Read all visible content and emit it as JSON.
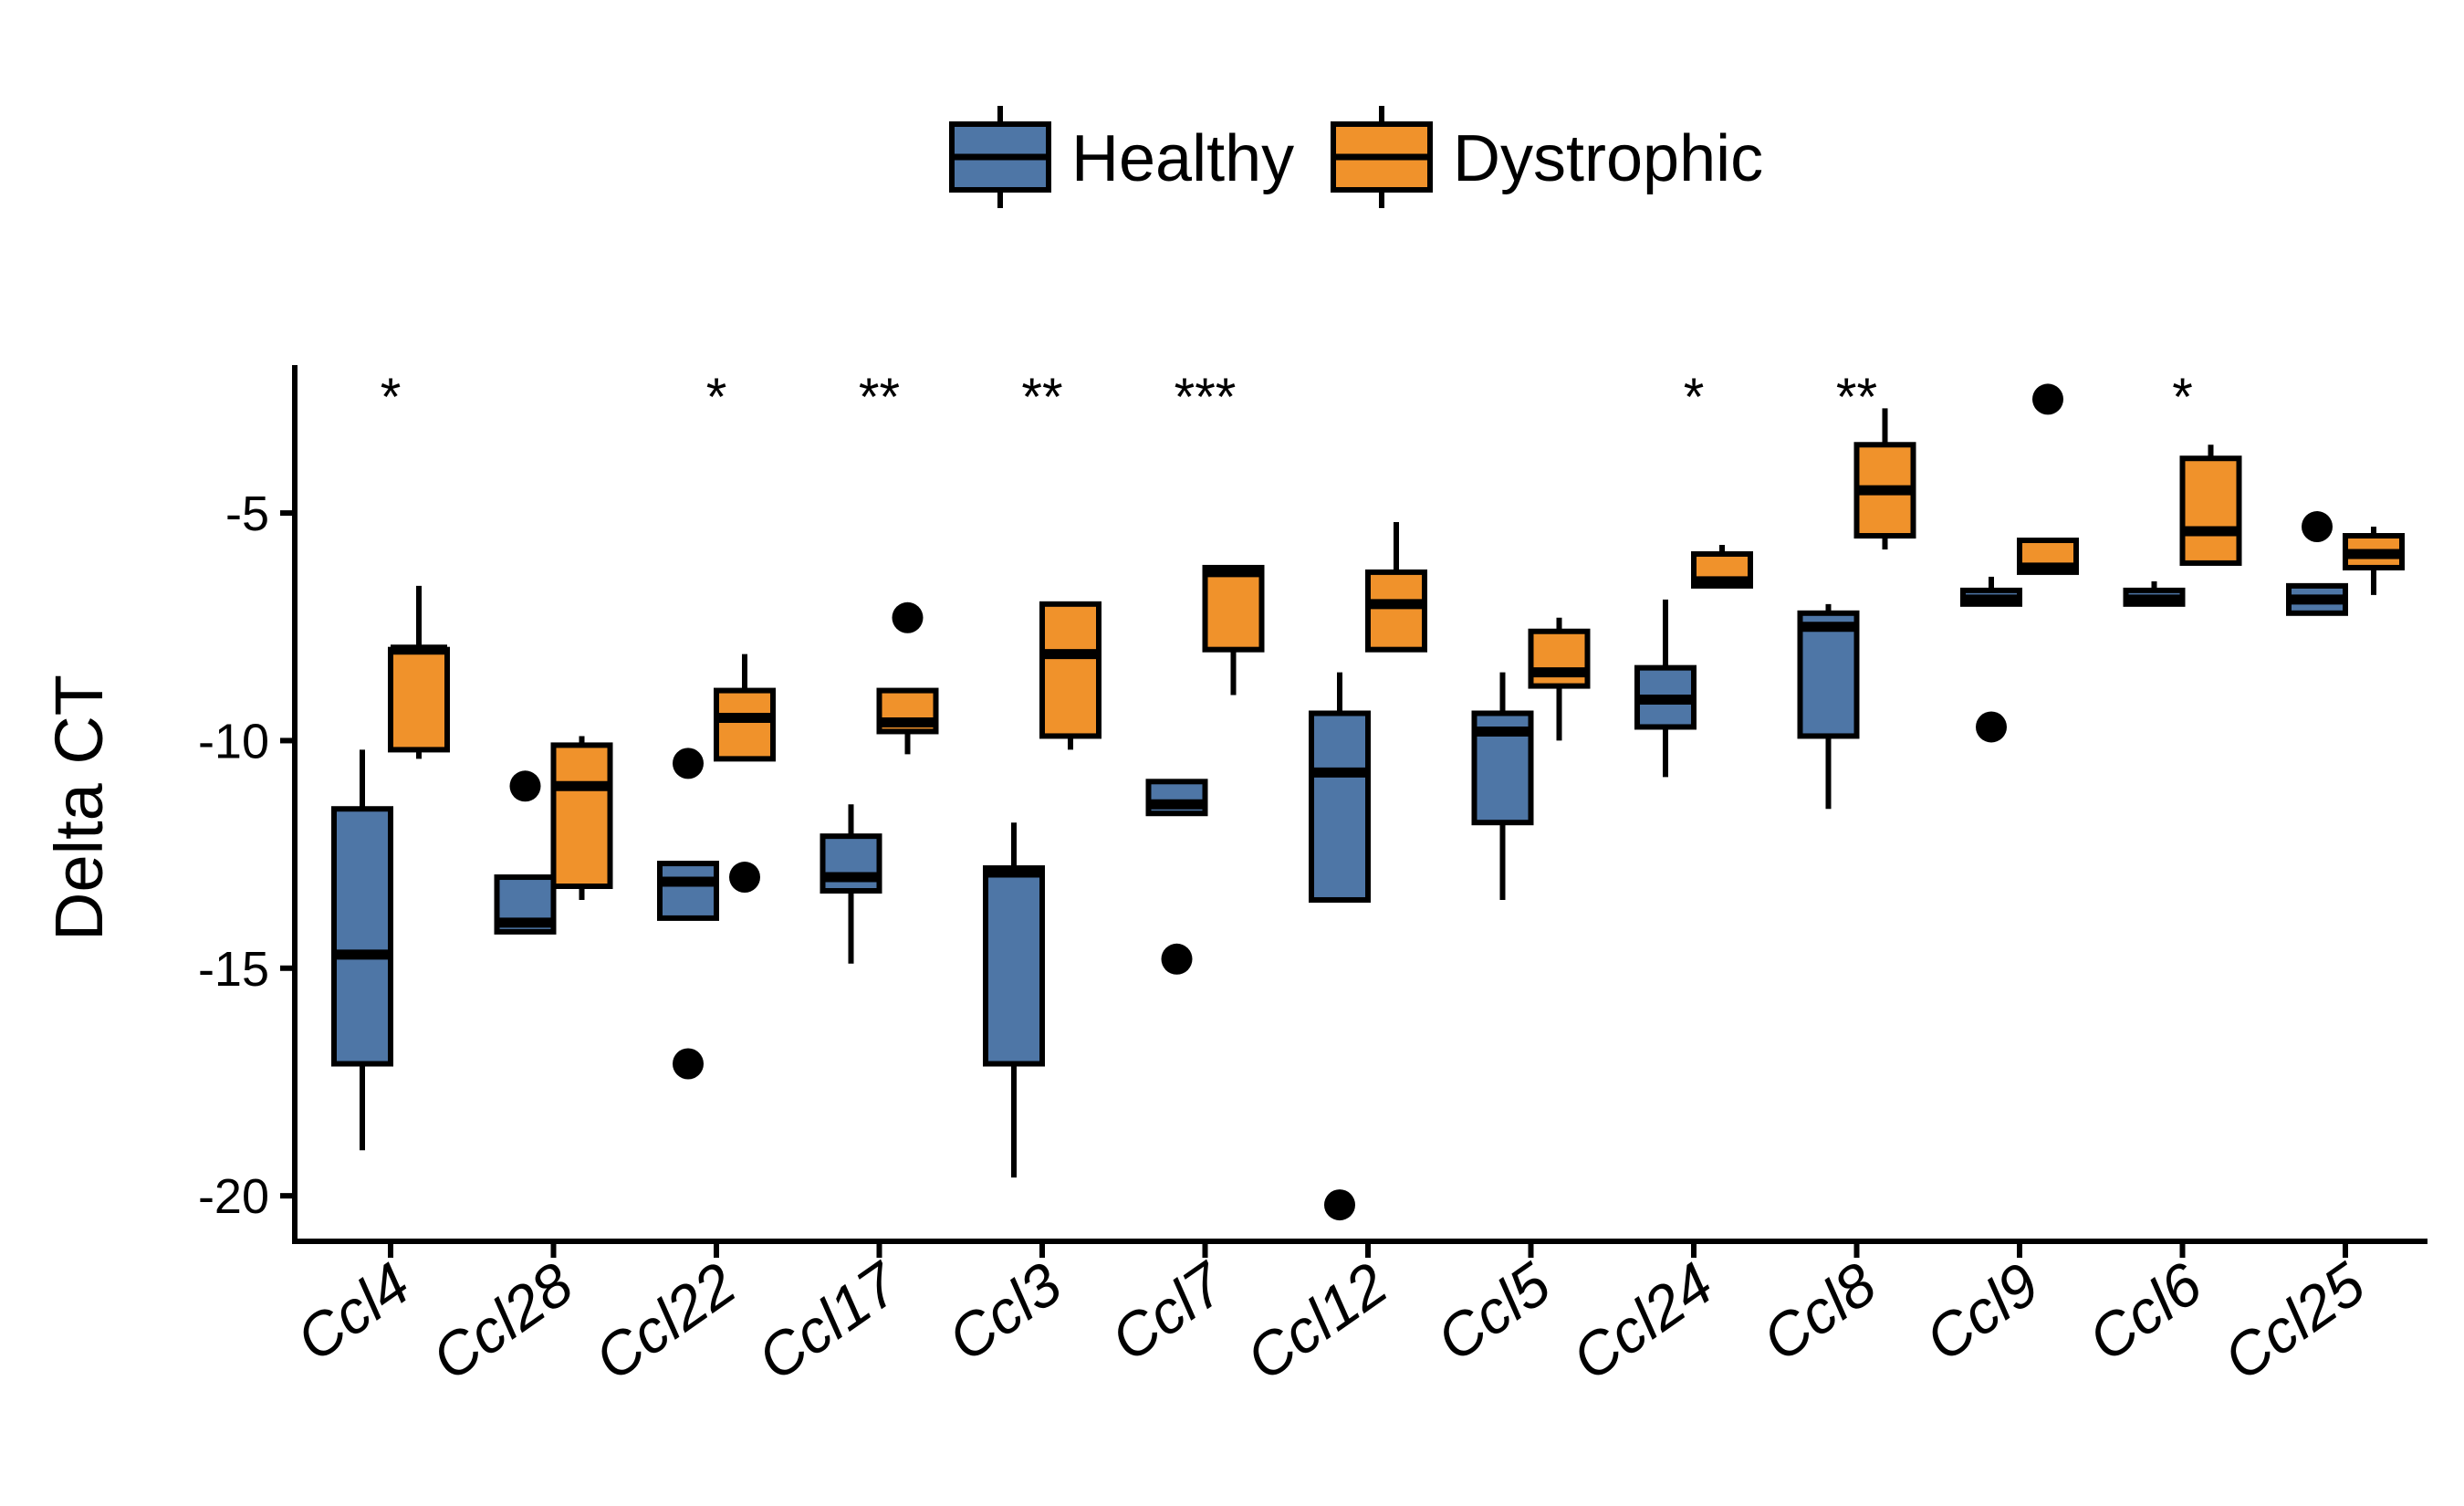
{
  "chart_data": {
    "type": "boxplot",
    "title": "",
    "xlabel": "",
    "ylabel": "Delta CT",
    "ylim": [
      -21,
      -1.75
    ],
    "yticks": [
      -5,
      -10,
      -15,
      -20
    ],
    "ytick_labels": [
      "-5",
      "-10",
      "-15",
      "-20"
    ],
    "grid": false,
    "legend_position": "top",
    "categories": [
      "Ccl4",
      "Ccl28",
      "Ccl22",
      "Ccl17",
      "Ccl3",
      "Ccl7",
      "Ccl12",
      "Ccl5",
      "Ccl24",
      "Ccl8",
      "Ccl9",
      "Ccl6",
      "Ccl25"
    ],
    "significance": [
      "*",
      "",
      "*",
      "**",
      "**",
      "***",
      "",
      "",
      "*",
      "**",
      "",
      "*",
      ""
    ],
    "series": [
      {
        "name": "Healthy",
        "color": "#4e76a6",
        "boxes": [
          {
            "whisker_low": -19.0,
            "q1": -17.1,
            "median": -14.7,
            "q3": -11.5,
            "whisker_high": -10.2,
            "outliers": []
          },
          {
            "whisker_low": -14.2,
            "q1": -14.2,
            "median": -14.0,
            "q3": -13.0,
            "whisker_high": -13.0,
            "outliers": [
              -11.0
            ]
          },
          {
            "whisker_low": -13.9,
            "q1": -13.9,
            "median": -13.1,
            "q3": -12.7,
            "whisker_high": -12.7,
            "outliers": [
              -10.5,
              -17.1
            ]
          },
          {
            "whisker_low": -14.9,
            "q1": -13.3,
            "median": -13.0,
            "q3": -12.1,
            "whisker_high": -11.4,
            "outliers": []
          },
          {
            "whisker_low": -19.6,
            "q1": -17.1,
            "median": -12.9,
            "q3": -12.8,
            "whisker_high": -11.8,
            "outliers": []
          },
          {
            "whisker_low": -11.6,
            "q1": -11.6,
            "median": -11.4,
            "q3": -10.9,
            "whisker_high": -10.9,
            "outliers": [
              -14.8
            ]
          },
          {
            "whisker_low": -13.5,
            "q1": -13.5,
            "median": -10.7,
            "q3": -9.4,
            "whisker_high": -8.5,
            "outliers": [
              -20.2
            ]
          },
          {
            "whisker_low": -13.5,
            "q1": -11.8,
            "median": -9.8,
            "q3": -9.4,
            "whisker_high": -8.5,
            "outliers": []
          },
          {
            "whisker_low": -10.8,
            "q1": -9.7,
            "median": -9.1,
            "q3": -8.4,
            "whisker_high": -6.9,
            "outliers": []
          },
          {
            "whisker_low": -11.5,
            "q1": -9.9,
            "median": -7.5,
            "q3": -7.2,
            "whisker_high": -7.0,
            "outliers": []
          },
          {
            "whisker_low": -7.0,
            "q1": -7.0,
            "median": -6.9,
            "q3": -6.7,
            "whisker_high": -6.4,
            "outliers": [
              -9.7
            ]
          },
          {
            "whisker_low": -7.0,
            "q1": -7.0,
            "median": -6.9,
            "q3": -6.7,
            "whisker_high": -6.5,
            "outliers": []
          },
          {
            "whisker_low": -7.2,
            "q1": -7.2,
            "median": -6.9,
            "q3": -6.6,
            "whisker_high": -6.6,
            "outliers": [
              -5.3
            ]
          }
        ]
      },
      {
        "name": "Dystrophic",
        "color": "#f0922b",
        "boxes": [
          {
            "whisker_low": -10.4,
            "q1": -10.2,
            "median": -8.0,
            "q3": -8.0,
            "whisker_high": -6.6,
            "outliers": []
          },
          {
            "whisker_low": -13.5,
            "q1": -13.2,
            "median": -11.0,
            "q3": -10.1,
            "whisker_high": -9.9,
            "outliers": []
          },
          {
            "whisker_low": -10.4,
            "q1": -10.4,
            "median": -9.5,
            "q3": -8.9,
            "whisker_high": -8.1,
            "outliers": [
              -13.0
            ]
          },
          {
            "whisker_low": -10.3,
            "q1": -9.8,
            "median": -9.6,
            "q3": -8.9,
            "whisker_high": -8.9,
            "outliers": [
              -7.3
            ]
          },
          {
            "whisker_low": -10.2,
            "q1": -9.9,
            "median": -8.1,
            "q3": -7.0,
            "whisker_high": -7.0,
            "outliers": []
          },
          {
            "whisker_low": -9.0,
            "q1": -8.0,
            "median": -6.3,
            "q3": -6.2,
            "whisker_high": -6.2,
            "outliers": []
          },
          {
            "whisker_low": -8.0,
            "q1": -8.0,
            "median": -7.0,
            "q3": -6.3,
            "whisker_high": -5.2,
            "outliers": []
          },
          {
            "whisker_low": -10.0,
            "q1": -8.8,
            "median": -8.5,
            "q3": -7.6,
            "whisker_high": -7.3,
            "outliers": []
          },
          {
            "whisker_low": -6.6,
            "q1": -6.6,
            "median": -6.5,
            "q3": -5.9,
            "whisker_high": -5.7,
            "outliers": []
          },
          {
            "whisker_low": -5.8,
            "q1": -5.5,
            "median": -4.5,
            "q3": -3.5,
            "whisker_high": -2.7,
            "outliers": []
          },
          {
            "whisker_low": -6.3,
            "q1": -6.3,
            "median": -6.2,
            "q3": -5.6,
            "whisker_high": -5.6,
            "outliers": [
              -2.5
            ]
          },
          {
            "whisker_low": -6.1,
            "q1": -6.1,
            "median": -5.4,
            "q3": -3.8,
            "whisker_high": -3.5,
            "outliers": []
          },
          {
            "whisker_low": -6.8,
            "q1": -6.2,
            "median": -5.9,
            "q3": -5.5,
            "whisker_high": -5.3,
            "outliers": []
          }
        ]
      }
    ]
  }
}
